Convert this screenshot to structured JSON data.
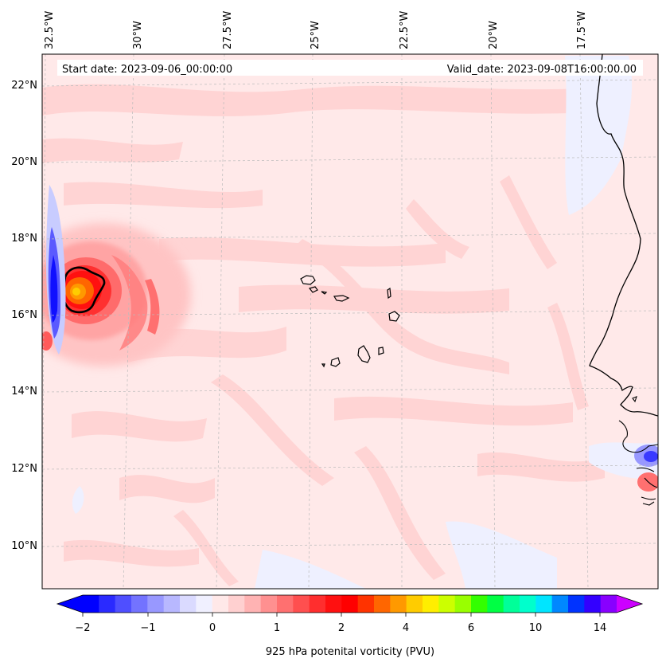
{
  "header": {
    "start_date": "Start date: 2023-09-06_00:00:00",
    "valid_date": "Valid_date: 2023-09-08T16:00:00.00"
  },
  "axes": {
    "lon_labels": [
      "32.5°W",
      "30°W",
      "27.5°W",
      "25°W",
      "22.5°W",
      "20°W",
      "17.5°W"
    ],
    "lat_labels": [
      "22°N",
      "20°N",
      "18°N",
      "16°N",
      "14°N",
      "12°N",
      "10°N"
    ]
  },
  "colorbar": {
    "label": "925 hPa potenital vorticity (PVU)",
    "ticks": [
      "−2",
      "−1",
      "0",
      "1",
      "2",
      "4",
      "6",
      "10",
      "14"
    ],
    "colors": [
      "#0000ff",
      "#2a2aff",
      "#4f4fff",
      "#7373ff",
      "#9898ff",
      "#b8b8ff",
      "#dadaff",
      "#f0f0ff",
      "#ffe8e8",
      "#ffd0d0",
      "#ffb3b3",
      "#ff9090",
      "#ff7070",
      "#ff4f4f",
      "#ff2e2e",
      "#ff1010",
      "#ff0000",
      "#ff3300",
      "#ff6600",
      "#ff9900",
      "#ffcc00",
      "#ffee00",
      "#ccff00",
      "#99ff00",
      "#33ff00",
      "#00ff44",
      "#00ff99",
      "#00ffcc",
      "#00e5ff",
      "#0088ff",
      "#0033ff",
      "#3300ff",
      "#8800ff"
    ],
    "under_color": "#0000ff",
    "over_color": "#cc00ff"
  },
  "chart_data": {
    "type": "heatmap",
    "variable": "925 hPa potenital vorticity (PVU)",
    "lon_range_deg": [
      -33.0,
      -15.0
    ],
    "lat_range_deg": [
      9.0,
      23.0
    ],
    "levels": [
      -2,
      -1,
      0,
      1,
      2,
      4,
      6,
      10,
      14
    ],
    "features": [
      {
        "name": "tropical cyclone PV maximum",
        "lon": -31.5,
        "lat": 16.6,
        "peak_pvu": 5
      },
      {
        "name": "negative PV band",
        "lon": -32.6,
        "lat": 16.5,
        "min_pvu": -2
      },
      {
        "name": "negative PV near West African coast",
        "lon": -15.3,
        "lat": 12.3,
        "min_pvu": -1
      }
    ]
  }
}
